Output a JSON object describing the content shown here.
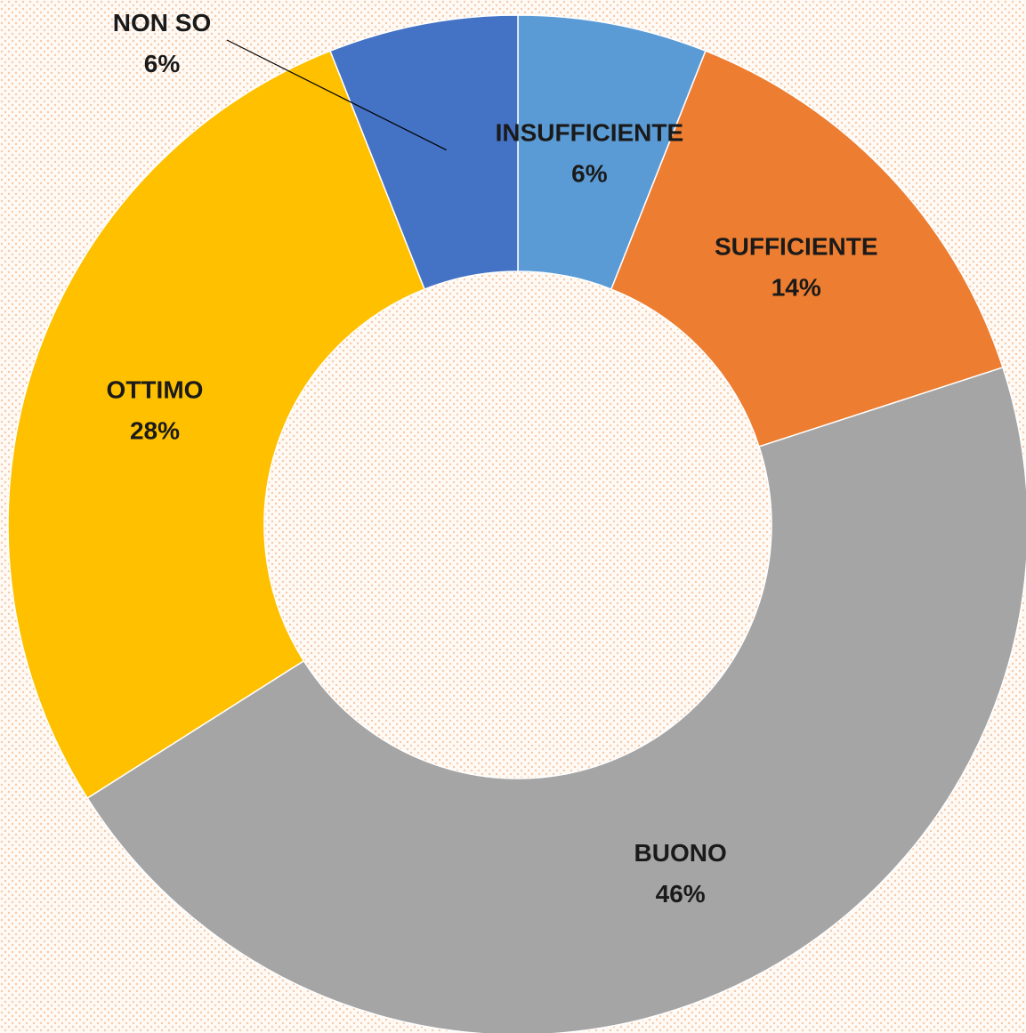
{
  "chart_data": {
    "type": "donut",
    "categories": [
      "INSUFFICIENTE",
      "SUFFICIENTE",
      "BUONO",
      "OTTIMO",
      "NON SO"
    ],
    "values": [
      6,
      14,
      46,
      28,
      6
    ],
    "value_labels": [
      "6%",
      "14%",
      "46%",
      "28%",
      "6%"
    ],
    "colors": [
      "#5b9bd5",
      "#ed7d31",
      "#a5a5a5",
      "#ffc000",
      "#4472c4"
    ]
  }
}
